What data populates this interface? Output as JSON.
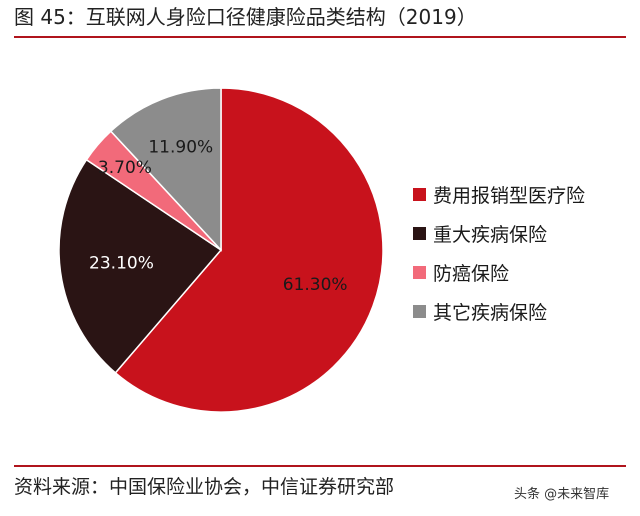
{
  "title": "图 45：互联网人身险口径健康险品类结构（2019）",
  "source": "资料来源：中国保险业协会，中信证券研究部",
  "watermark": "头条 @未来智库",
  "colors": {
    "rule": "#b0141c"
  },
  "chart_data": {
    "type": "pie",
    "legend_position": "right",
    "slices": [
      {
        "name": "费用报销型医疗险",
        "value": 61.3,
        "label": "61.30%",
        "color": "#c8121c",
        "label_color": "#1a1a1a"
      },
      {
        "name": "重大疾病保险",
        "value": 23.1,
        "label": "23.10%",
        "color": "#2a1414",
        "label_color": "#ffffff"
      },
      {
        "name": "防癌保险",
        "value": 3.7,
        "label": "3.70%",
        "color": "#f26a7a",
        "label_color": "#1a1a1a"
      },
      {
        "name": "其它疾病保险",
        "value": 11.9,
        "label": "11.90%",
        "color": "#8c8c8c",
        "label_color": "#1a1a1a"
      }
    ]
  }
}
